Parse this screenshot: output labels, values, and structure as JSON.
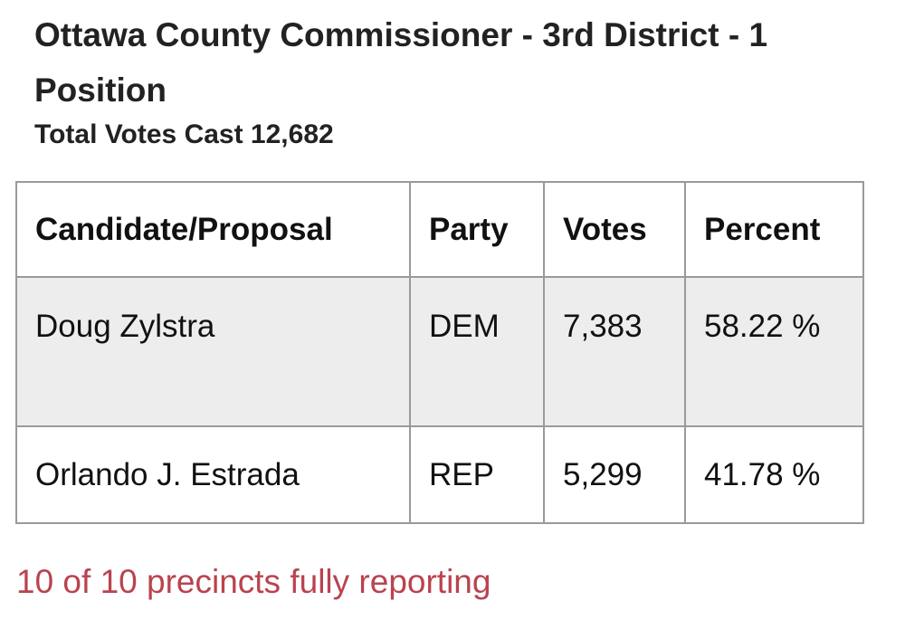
{
  "header": {
    "title": "Ottawa County Commissioner - 3rd District - 1 Position",
    "subtitle": "Total Votes Cast 12,682"
  },
  "table": {
    "columns": [
      "Candidate/Proposal",
      "Party",
      "Votes",
      "Percent"
    ],
    "rows": [
      [
        "Doug Zylstra",
        "DEM",
        "7,383",
        "58.22 %"
      ],
      [
        "Orlando J. Estrada",
        "REP",
        "5,299",
        "41.78 %"
      ]
    ]
  },
  "footer": {
    "status": "10 of 10 precincts fully reporting"
  }
}
